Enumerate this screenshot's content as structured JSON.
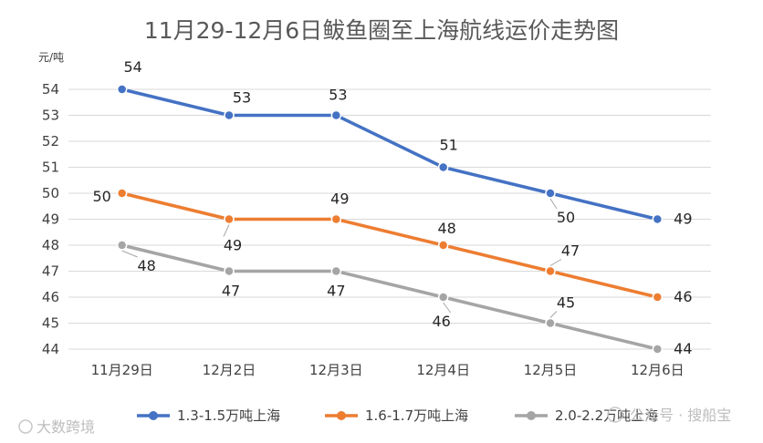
{
  "chart_data": {
    "type": "line",
    "title": "11月29-12月6日鲅鱼圈至上海航线运价走势图",
    "ylabel": "元/吨",
    "xlabel": "",
    "categories": [
      "11月29日",
      "12月2日",
      "12月3日",
      "12月4日",
      "12月5日",
      "12月6日"
    ],
    "ylim": [
      44,
      54
    ],
    "yticks": [
      44,
      45,
      46,
      47,
      48,
      49,
      50,
      51,
      52,
      53,
      54
    ],
    "grid": true,
    "legend_position": "bottom",
    "series": [
      {
        "name": "1.3-1.5万吨上海",
        "color": "#4472c4",
        "values": [
          54,
          53,
          53,
          51,
          50,
          49
        ]
      },
      {
        "name": "1.6-1.7万吨上海",
        "color": "#ed7d31",
        "values": [
          50,
          49,
          49,
          48,
          47,
          46
        ]
      },
      {
        "name": "2.0-2.2万吨上海",
        "color": "#a5a5a5",
        "values": [
          48,
          47,
          47,
          46,
          45,
          44
        ]
      }
    ]
  },
  "watermarks": {
    "left": "大数跨境",
    "right": "公众号 · 搜船宝"
  }
}
